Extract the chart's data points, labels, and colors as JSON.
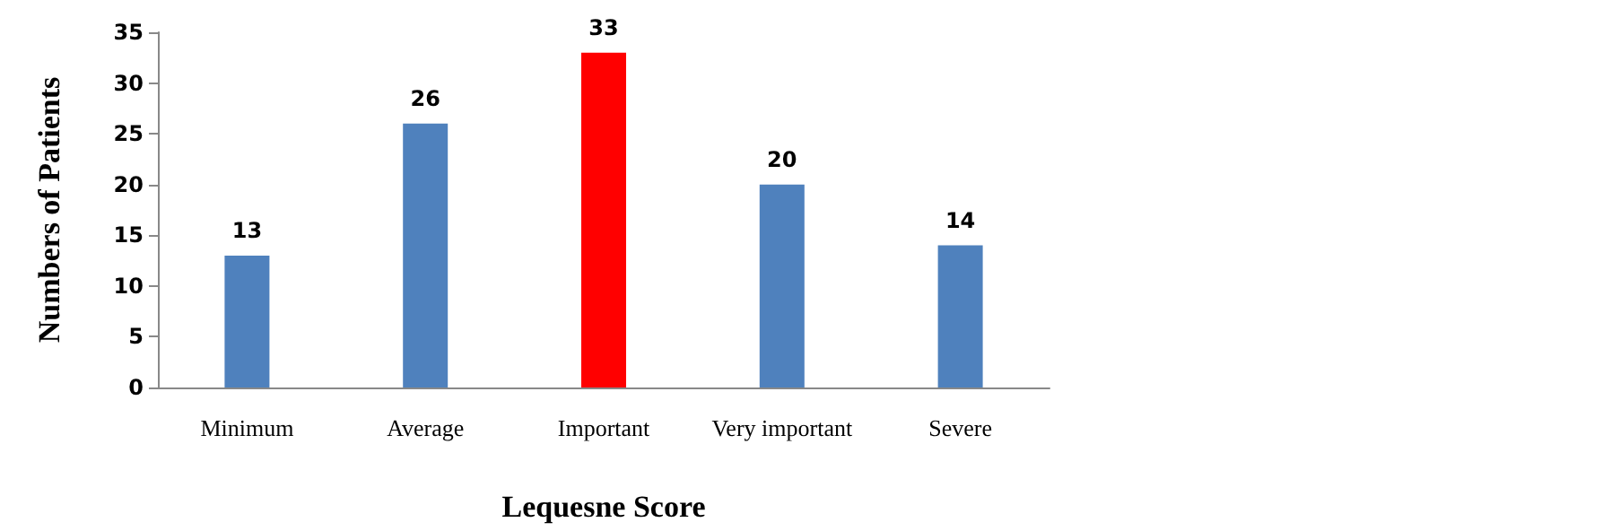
{
  "chart_data": {
    "type": "bar",
    "xlabel": "Lequesne Score",
    "ylabel": "Numbers of Patients",
    "categories": [
      "Minimum",
      "Average",
      "Important",
      "Very important",
      "Severe"
    ],
    "values": [
      13,
      26,
      33,
      20,
      14
    ],
    "colors": [
      "#4f81bd",
      "#4f81bd",
      "#ff0000",
      "#4f81bd",
      "#4f81bd"
    ],
    "ylim": [
      0,
      35
    ],
    "yticks": [
      0,
      5,
      10,
      15,
      20,
      25,
      30,
      35
    ],
    "grid": false,
    "data_labels": true
  }
}
